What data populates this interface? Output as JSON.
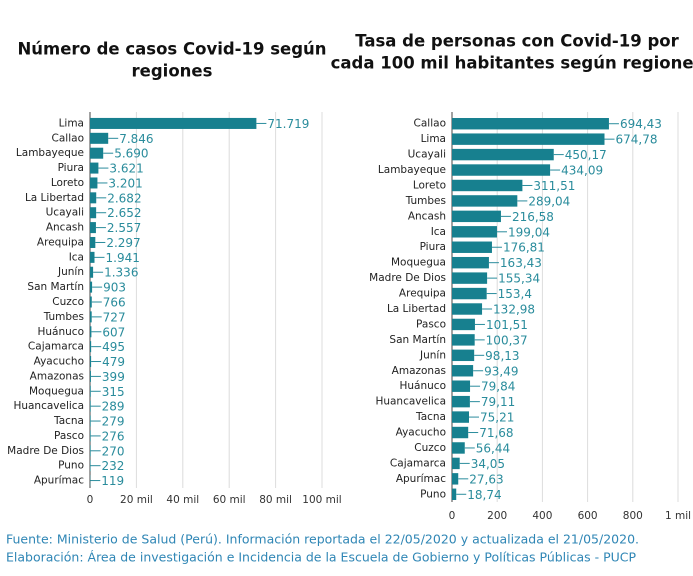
{
  "chart_data": [
    {
      "type": "barh",
      "title": [
        "Número de casos Covid-19 según",
        "regiones"
      ],
      "color": "#17808f",
      "categories": [
        "Lima",
        "Callao",
        "Lambayeque",
        "Piura",
        "Loreto",
        "La Libertad",
        "Ucayali",
        "Ancash",
        "Arequipa",
        "Ica",
        "Junín",
        "San Martín",
        "Cuzco",
        "Tumbes",
        "Huánuco",
        "Cajamarca",
        "Ayacucho",
        "Amazonas",
        "Moquegua",
        "Huancavelica",
        "Tacna",
        "Pasco",
        "Madre De Dios",
        "Puno",
        "Apurímac"
      ],
      "values": [
        71719,
        7846,
        5690,
        3621,
        3201,
        2682,
        2652,
        2557,
        2297,
        1941,
        1336,
        903,
        766,
        727,
        607,
        495,
        479,
        399,
        315,
        289,
        279,
        276,
        270,
        232,
        119
      ],
      "value_labels": [
        "71.719",
        "7.846",
        "5.690",
        "3.621",
        "3.201",
        "2.682",
        "2.652",
        "2.557",
        "2.297",
        "1.941",
        "1.336",
        "903",
        "766",
        "727",
        "607",
        "495",
        "479",
        "399",
        "315",
        "289",
        "279",
        "276",
        "270",
        "232",
        "119"
      ],
      "xlim": [
        0,
        100000
      ],
      "xticks": [
        0,
        {
          "value": 20000,
          "label": "20 mil"
        },
        {
          "value": 40000,
          "label": "40 mil"
        },
        {
          "value": 60000,
          "label": "60 mil"
        },
        {
          "value": 80000,
          "label": "80 mil"
        },
        {
          "value": 100000,
          "label": "100 mil"
        }
      ],
      "grid": true
    },
    {
      "type": "barh",
      "title": [
        "Tasa de personas con Covid-19 por",
        "cada 100 mil habitantes según regiones"
      ],
      "color": "#17808f",
      "categories": [
        "Callao",
        "Lima",
        "Ucayali",
        "Lambayeque",
        "Loreto",
        "Tumbes",
        "Ancash",
        "Ica",
        "Piura",
        "Moquegua",
        "Madre De Dios",
        "Arequipa",
        "La Libertad",
        "Pasco",
        "San Martín",
        "Junín",
        "Amazonas",
        "Huánuco",
        "Huancavelica",
        "Tacna",
        "Ayacucho",
        "Cuzco",
        "Cajamarca",
        "Apurímac",
        "Puno"
      ],
      "values": [
        694.43,
        674.78,
        450.17,
        434.09,
        311.51,
        289.04,
        216.58,
        199.04,
        176.81,
        163.43,
        155.34,
        153.4,
        132.98,
        101.51,
        100.37,
        98.13,
        93.49,
        79.84,
        79.11,
        75.21,
        71.68,
        56.44,
        34.05,
        27.63,
        18.74
      ],
      "value_labels": [
        "694,43",
        "674,78",
        "450,17",
        "434,09",
        "311,51",
        "289,04",
        "216,58",
        "199,04",
        "176,81",
        "163,43",
        "155,34",
        "153,4",
        "132,98",
        "101,51",
        "100,37",
        "98,13",
        "93,49",
        "79,84",
        "79,11",
        "75,21",
        "71,68",
        "56,44",
        "34,05",
        "27,63",
        "18,74"
      ],
      "xlim": [
        0,
        1000
      ],
      "xticks": [
        0,
        200,
        400,
        600,
        800,
        {
          "value": 1000,
          "label": "1 mil"
        }
      ],
      "grid": true
    }
  ],
  "footer": [
    "Fuente: Ministerio de Salud (Perú). Información reportada el 22/05/2020 y actualizada el 21/05/2020.",
    "Elaboración: Área de investigación e Incidencia de la Escuela de Gobierno y Políticas Públicas - PUCP"
  ]
}
